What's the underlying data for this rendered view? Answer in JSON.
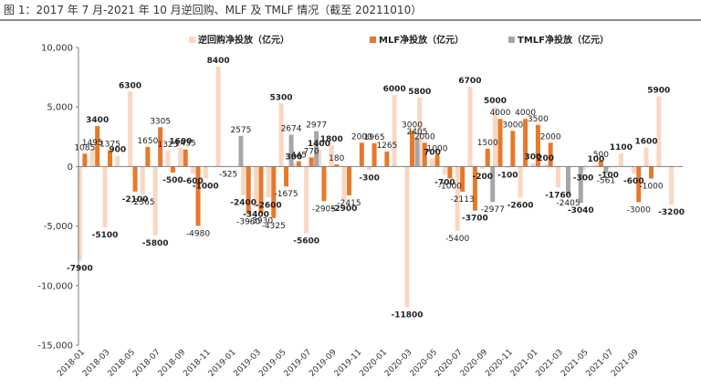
{
  "figure_title": "图 1：2017 年 7 月-2021 年 10 月逆回购、MLF 及 TMLF 情况（截至 20211010）",
  "colors": {
    "reverse_repo": "#fad7c2",
    "mlf": "#e8782a",
    "tmlf": "#a6a6a6",
    "axis": "#7f7f7f",
    "text": "#333333"
  },
  "chart_data": {
    "type": "bar",
    "title": "",
    "xlabel": "",
    "ylabel": "",
    "ylim": [
      -15000,
      10000
    ],
    "yticks": [
      -15000,
      -10000,
      -5000,
      0,
      5000,
      10000
    ],
    "ytick_labels": [
      "-15,000",
      "-10,000",
      "-5,000",
      "0",
      "5,000",
      "10,000"
    ],
    "grid": false,
    "legend_position": "top",
    "xtick_labels": [
      "2018-01",
      "2018-03",
      "2018-05",
      "2018-07",
      "2018-09",
      "2018-11",
      "2019-01",
      "2019-03",
      "2019-05",
      "2019-07",
      "2019-09",
      "2019-11",
      "2020-01",
      "2020-03",
      "2020-05",
      "2020-07",
      "2020-09",
      "2020-11",
      "2021-01",
      "2021-03",
      "2021-05",
      "2021-07",
      "2021-09"
    ],
    "series": [
      {
        "name": "逆回购净投放（亿元）",
        "color": "#fad7c2",
        "bars": [
          {
            "cat": 0,
            "value": -7900,
            "label": "-7900",
            "bold": true
          },
          {
            "cat": 1,
            "value": 1495,
            "label": "1495",
            "bold": false
          },
          {
            "cat": 2,
            "value": -5100,
            "label": "-5100",
            "bold": true
          },
          {
            "cat": 3,
            "value": 900,
            "label": "900",
            "bold": true
          },
          {
            "cat": 4,
            "value": 6300,
            "label": "6300",
            "bold": true
          },
          {
            "cat": 5,
            "value": -2365,
            "label": "-2365",
            "bold": false
          },
          {
            "cat": 6,
            "value": -5800,
            "label": "-5800",
            "bold": true
          },
          {
            "cat": 7,
            "value": 1325,
            "label": "1325",
            "bold": false
          },
          {
            "cat": 8,
            "value": 1600,
            "label": "1600",
            "bold": true
          },
          {
            "cat": 9,
            "value": -600,
            "label": "-600",
            "bold": true
          },
          {
            "cat": 10,
            "value": -1000,
            "label": "-1000",
            "bold": true
          },
          {
            "cat": 11,
            "value": 8400,
            "label": "8400",
            "bold": true
          },
          {
            "cat": 12,
            "value": -25,
            "label": "-25",
            "bold": false
          },
          {
            "cat": 13,
            "value": -2400,
            "label": "-2400",
            "bold": true
          },
          {
            "cat": 14,
            "value": -3400,
            "label": "-3400",
            "bold": true
          },
          {
            "cat": 15,
            "value": -2600,
            "label": "-2600",
            "bold": true
          },
          {
            "cat": 16,
            "value": 5300,
            "label": "5300",
            "bold": true
          },
          {
            "cat": 17,
            "value": 300,
            "label": "300",
            "bold": true
          },
          {
            "cat": 18,
            "value": -5600,
            "label": "-5600",
            "bold": true
          },
          {
            "cat": 19,
            "value": 1400,
            "label": "1400",
            "bold": true
          },
          {
            "cat": 20,
            "value": 1800,
            "label": "1800",
            "bold": true
          },
          {
            "cat": 21,
            "value": -2900,
            "label": "-2900",
            "bold": true
          },
          {
            "cat": 23,
            "value": -300,
            "label": "-300",
            "bold": true
          },
          {
            "cat": 25,
            "value": 6000,
            "label": "6000",
            "bold": true
          },
          {
            "cat": 26,
            "value": -11800,
            "label": "-11800",
            "bold": true
          },
          {
            "cat": 27,
            "value": 5800,
            "label": "5800",
            "bold": true
          },
          {
            "cat": 28,
            "value": 700,
            "label": "700",
            "bold": true
          },
          {
            "cat": 29,
            "value": -700,
            "label": "-700",
            "bold": true
          },
          {
            "cat": 30,
            "value": -5400,
            "label": "-5400",
            "bold": false
          },
          {
            "cat": 31,
            "value": 6700,
            "label": "6700",
            "bold": true
          },
          {
            "cat": 32,
            "value": -200,
            "label": "-200",
            "bold": true
          },
          {
            "cat": 33,
            "value": 5000,
            "label": "5000",
            "bold": true
          },
          {
            "cat": 34,
            "value": -100,
            "label": "-100",
            "bold": true
          },
          {
            "cat": 35,
            "value": -2600,
            "label": "-2600",
            "bold": true
          },
          {
            "cat": 36,
            "value": 300,
            "label": "300",
            "bold": true
          },
          {
            "cat": 37,
            "value": 200,
            "label": "200",
            "bold": true
          },
          {
            "cat": 38,
            "value": -1760,
            "label": "-1760",
            "bold": true
          },
          {
            "cat": 40,
            "value": -300,
            "label": "-300",
            "bold": true
          },
          {
            "cat": 41,
            "value": 100,
            "label": "100",
            "bold": true
          },
          {
            "cat": 42,
            "value": -100,
            "label": "-100",
            "bold": true
          },
          {
            "cat": 43,
            "value": 1100,
            "label": "1100",
            "bold": true
          },
          {
            "cat": 44,
            "value": -600,
            "label": "-600",
            "bold": true
          },
          {
            "cat": 45,
            "value": 1600,
            "label": "1600",
            "bold": true
          },
          {
            "cat": 46,
            "value": 5900,
            "label": "5900",
            "bold": true
          },
          {
            "cat": 47,
            "value": -3200,
            "label": "-3200",
            "bold": true
          }
        ]
      },
      {
        "name": "MLF净投放（亿元）",
        "color": "#e8782a",
        "bars": [
          {
            "cat": 0,
            "value": 1085,
            "label": "1085",
            "bold": false
          },
          {
            "cat": 1,
            "value": 3400,
            "label": "3400",
            "bold": true
          },
          {
            "cat": 2,
            "value": 1375,
            "label": "1375",
            "bold": false
          },
          {
            "cat": 4,
            "value": -2100,
            "label": "-2100",
            "bold": true
          },
          {
            "cat": 5,
            "value": 1650,
            "label": "1650",
            "bold": false
          },
          {
            "cat": 6,
            "value": 3305,
            "label": "3305",
            "bold": false
          },
          {
            "cat": 7,
            "value": -500,
            "label": "-500",
            "bold": true
          },
          {
            "cat": 8,
            "value": 1435,
            "label": "1435",
            "bold": false
          },
          {
            "cat": 9,
            "value": -4980,
            "label": "-4980",
            "bold": false
          },
          {
            "cat": 11,
            "value": -5,
            "label": "-5",
            "bold": false
          },
          {
            "cat": 13,
            "value": -3980,
            "label": "-3980",
            "bold": false
          },
          {
            "cat": 14,
            "value": -3930,
            "label": "-3930",
            "bold": false
          },
          {
            "cat": 15,
            "value": -4325,
            "label": "-4325",
            "bold": false
          },
          {
            "cat": 16,
            "value": -1675,
            "label": "-1675",
            "bold": false
          },
          {
            "cat": 17,
            "value": 445,
            "label": "445",
            "bold": false
          },
          {
            "cat": 18,
            "value": 770,
            "label": "770",
            "bold": false
          },
          {
            "cat": 19,
            "value": -2905,
            "label": "-2905",
            "bold": false
          },
          {
            "cat": 20,
            "value": 180,
            "label": "180",
            "bold": false
          },
          {
            "cat": 21,
            "value": -2415,
            "label": "-2415",
            "bold": false
          },
          {
            "cat": 22,
            "value": 2000,
            "label": "2000",
            "bold": false
          },
          {
            "cat": 23,
            "value": 1965,
            "label": "1965",
            "bold": false
          },
          {
            "cat": 24,
            "value": 1265,
            "label": "1265",
            "bold": false
          },
          {
            "cat": 26,
            "value": 3000,
            "label": "3000",
            "bold": false
          },
          {
            "cat": 27,
            "value": 2000,
            "label": "2000",
            "bold": false
          },
          {
            "cat": 28,
            "value": 1000,
            "label": "1000",
            "bold": false
          },
          {
            "cat": 29,
            "value": -1000,
            "label": "-1000",
            "bold": false
          },
          {
            "cat": 30,
            "value": -2113,
            "label": "-2113",
            "bold": false
          },
          {
            "cat": 31,
            "value": -3700,
            "label": "-3700",
            "bold": true
          },
          {
            "cat": 32,
            "value": 1500,
            "label": "1500",
            "bold": false
          },
          {
            "cat": 33,
            "value": 4000,
            "label": "4000",
            "bold": false
          },
          {
            "cat": 34,
            "value": 3000,
            "label": "3000",
            "bold": false
          },
          {
            "cat": 35,
            "value": 4000,
            "label": "4000",
            "bold": false
          },
          {
            "cat": 36,
            "value": 3500,
            "label": "3500",
            "bold": false
          },
          {
            "cat": 37,
            "value": 2000,
            "label": "2000",
            "bold": false
          },
          {
            "cat": 41,
            "value": 500,
            "label": "500",
            "bold": false
          },
          {
            "cat": 44,
            "value": -3000,
            "label": "-3000",
            "bold": false
          },
          {
            "cat": 45,
            "value": -1000,
            "label": "-1000",
            "bold": false
          }
        ]
      },
      {
        "name": "TMLF净投放（亿元）",
        "color": "#a6a6a6",
        "bars": [
          {
            "cat": 12,
            "value": 2575,
            "label": "2575",
            "bold": false
          },
          {
            "cat": 16,
            "value": 2674,
            "label": "2674",
            "bold": false
          },
          {
            "cat": 18,
            "value": 2977,
            "label": "2977",
            "bold": false
          },
          {
            "cat": 26,
            "value": 2405,
            "label": "2405",
            "bold": false
          },
          {
            "cat": 32,
            "value": -2977,
            "label": "-2977",
            "bold": false
          },
          {
            "cat": 38,
            "value": -2405,
            "label": "-2405",
            "bold": false
          },
          {
            "cat": 39,
            "value": -3040,
            "label": "-3040",
            "bold": true
          },
          {
            "cat": 41,
            "value": -561,
            "label": "-561",
            "bold": false
          }
        ]
      }
    ]
  }
}
